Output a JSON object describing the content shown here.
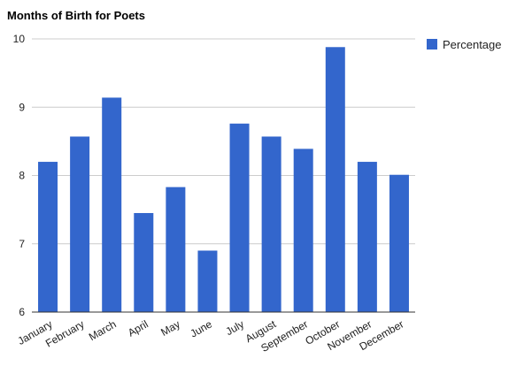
{
  "chart_data": {
    "type": "bar",
    "title": "Months of Birth for Poets",
    "categories": [
      "January",
      "February",
      "March",
      "April",
      "May",
      "June",
      "July",
      "August",
      "September",
      "October",
      "November",
      "December"
    ],
    "series": [
      {
        "name": "Percentage",
        "values": [
          8.2,
          8.57,
          9.14,
          7.45,
          7.83,
          6.9,
          8.76,
          8.57,
          8.39,
          9.88,
          8.2,
          8.01
        ]
      }
    ],
    "ylim": [
      6,
      10
    ],
    "yticks": [
      "6",
      "7",
      "8",
      "9",
      "10"
    ],
    "grid": true,
    "legend_position": "right",
    "colors": {
      "bar": "#3366cc",
      "grid": "#cccccc",
      "axis": "#333333"
    }
  }
}
